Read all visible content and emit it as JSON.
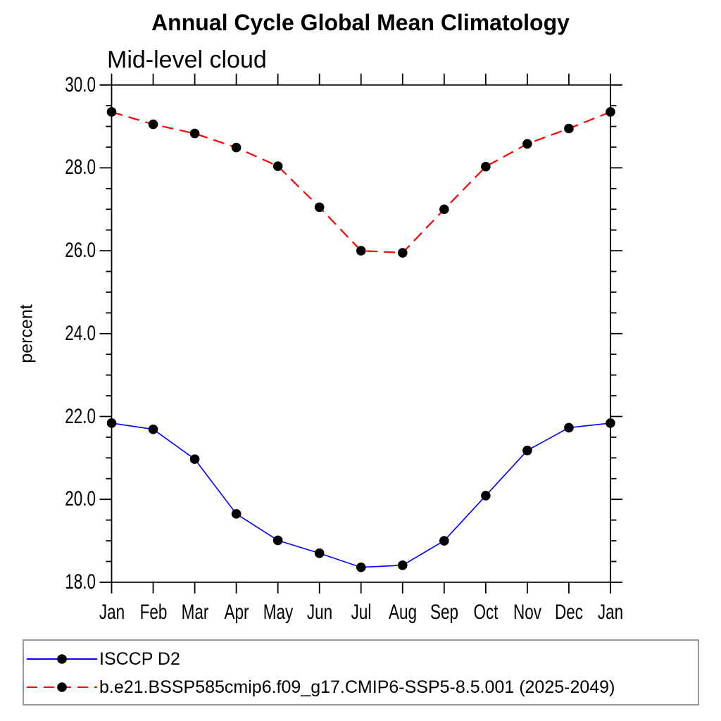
{
  "chart_data": {
    "type": "line",
    "title": "Annual Cycle Global Mean Climatology",
    "subtitle": "Mid-level cloud",
    "xlabel": "",
    "ylabel": "percent",
    "x_categories": [
      "Jan",
      "Feb",
      "Mar",
      "Apr",
      "May",
      "Jun",
      "Jul",
      "Aug",
      "Sep",
      "Oct",
      "Nov",
      "Dec",
      "Jan"
    ],
    "ylim": [
      18.0,
      30.0
    ],
    "ytick_labels": [
      "18.0",
      "20.0",
      "22.0",
      "24.0",
      "26.0",
      "28.0",
      "30.0"
    ],
    "ytick_major_step": 2.0,
    "ytick_minor_step": 0.5,
    "grid": false,
    "legend_position": "bottom-left",
    "series": [
      {
        "name": "ISCCP D2",
        "line_color": "#0000ff",
        "line_style": "solid",
        "marker": "filled-circle",
        "marker_color": "#000000",
        "values": [
          21.84,
          21.69,
          20.97,
          19.65,
          19.01,
          18.7,
          18.36,
          18.41,
          19.0,
          20.09,
          21.18,
          21.73,
          21.84
        ]
      },
      {
        "name": "b.e21.BSSP585cmip6.f09_g17.CMIP6-SSP5-8.5.001 (2025-2049)",
        "line_color": "#ff0000",
        "line_style": "dashed",
        "marker": "filled-circle",
        "marker_color": "#000000",
        "values": [
          29.35,
          29.05,
          28.83,
          28.49,
          28.04,
          27.05,
          26.0,
          25.95,
          27.0,
          28.03,
          28.58,
          28.95,
          29.35
        ]
      }
    ]
  },
  "colors": {
    "axis": "#000000",
    "text": "#000000",
    "legend_border": "#999999",
    "background": "#ffffff"
  }
}
